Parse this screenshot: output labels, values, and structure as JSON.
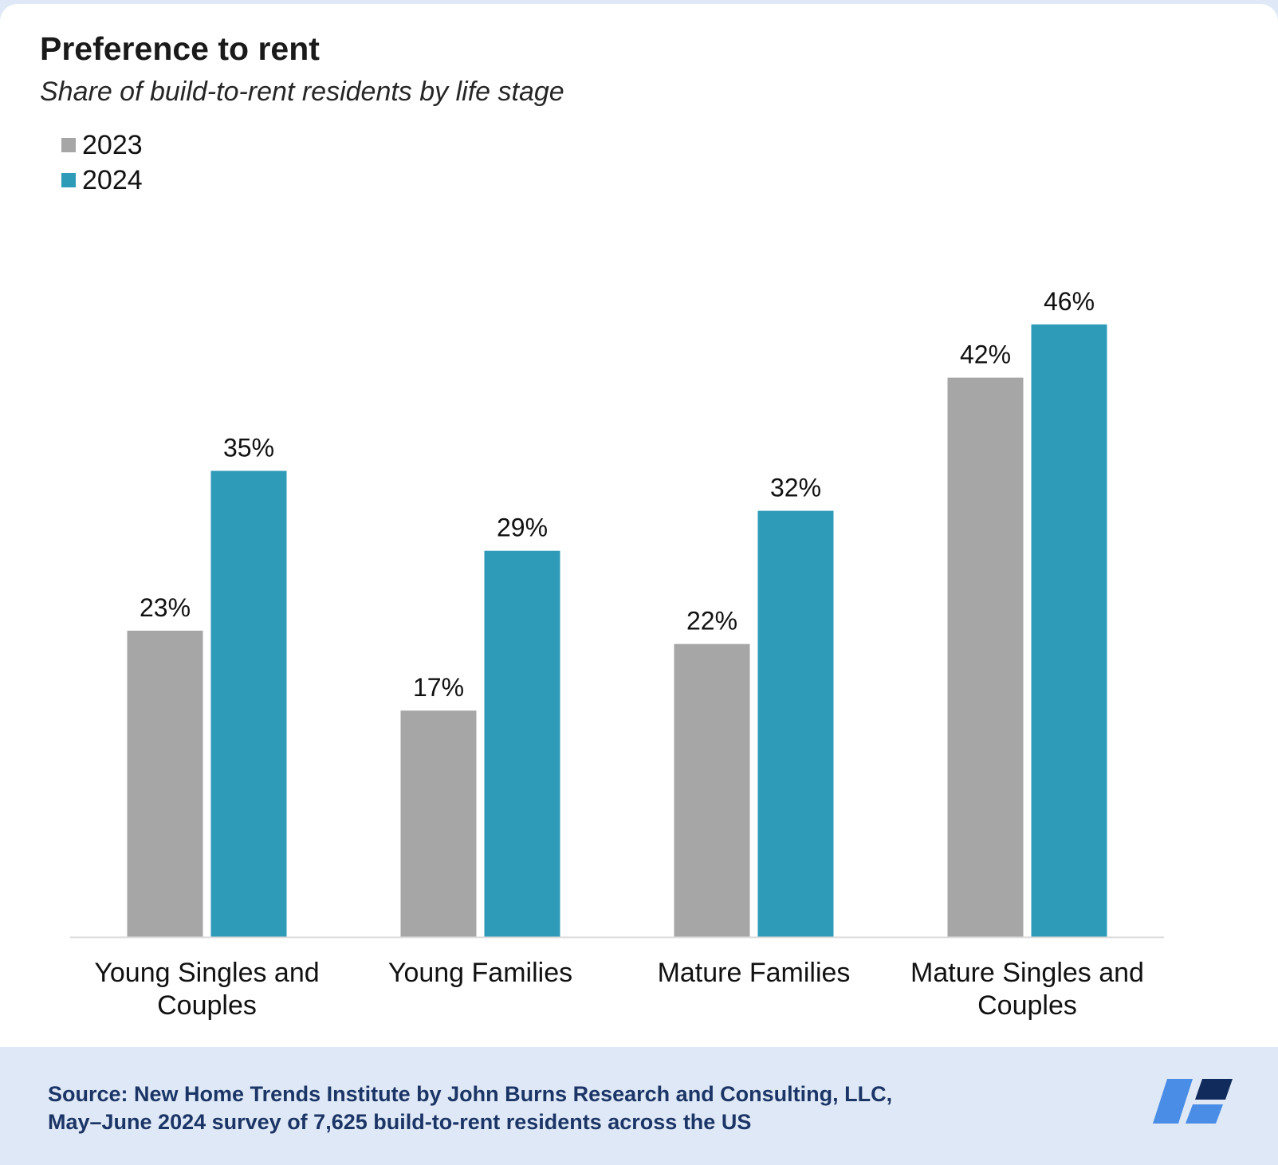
{
  "title": "Preference to rent",
  "subtitle": "Share of build-to-rent residents by life stage",
  "colors": {
    "s2023": "#a6a6a6",
    "s2024": "#2e9bb8",
    "baseline": "#d9d9d9",
    "footer_text": "#1b3566"
  },
  "source": {
    "line1": "Source: New Home Trends Institute by John Burns Research and Consulting, LLC,",
    "line2": "May–June 2024 survey of 7,625 build-to-rent residents across the US"
  },
  "logo": {
    "icon": "company-logo-icon",
    "colors": [
      "#4a8de6",
      "#102b5c"
    ]
  },
  "chart_data": {
    "type": "bar",
    "title": "Preference to rent",
    "subtitle": "Share of build-to-rent residents by life stage",
    "categories": [
      [
        "Young Singles and",
        "Couples"
      ],
      [
        "Young Families"
      ],
      [
        "Mature Families"
      ],
      [
        "Mature Singles and",
        "Couples"
      ]
    ],
    "series": [
      {
        "name": "2023",
        "values": [
          23,
          17,
          22,
          42
        ],
        "labels": [
          "23%",
          "17%",
          "22%",
          "42%"
        ],
        "color": "#a6a6a6"
      },
      {
        "name": "2024",
        "values": [
          35,
          29,
          32,
          46
        ],
        "labels": [
          "35%",
          "29%",
          "32%",
          "46%"
        ],
        "color": "#2e9bb8"
      }
    ],
    "ylim": [
      0,
      50
    ],
    "grid": false,
    "legend": "top-left",
    "xlabel": "",
    "ylabel": ""
  }
}
